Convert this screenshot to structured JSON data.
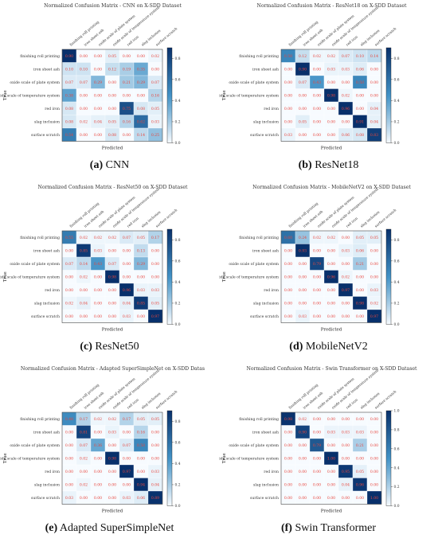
{
  "figure": {
    "colors": {
      "cell_low": "#f7fbff",
      "cell_high": "#08306b",
      "value_text": "#e8453c",
      "axis": "#222222"
    },
    "colorbar_ticks": [
      "0.0",
      "0.2",
      "0.4",
      "0.6",
      "0.8"
    ],
    "colorbar_ticks_f": [
      "0.0",
      "0.2",
      "0.4",
      "0.6",
      "0.8",
      "1.0"
    ]
  },
  "chart_data": [
    {
      "type": "heatmap",
      "caption_tag": "(a)",
      "caption_name": "CNN",
      "title": "Normalized Confusion Matrix - CNN on X-SDD Dataset",
      "xlabel": "Predicted",
      "ylabel": "True",
      "labels": [
        "finishing roll printing",
        "iron sheet ash",
        "oxide scale of plate system",
        "oxide scale of temperature system",
        "red iron",
        "slag inclusion",
        "surface scratch"
      ],
      "matrix": [
        [
          0.9,
          0.0,
          0.0,
          0.05,
          0.0,
          0.0,
          0.02
        ],
        [
          0.1,
          0.1,
          0.0,
          0.12,
          0.19,
          0.35,
          0.0
        ],
        [
          0.07,
          0.07,
          0.29,
          0.0,
          0.21,
          0.29,
          0.07
        ],
        [
          0.38,
          0.0,
          0.0,
          0.0,
          0.0,
          0.0,
          0.16
        ],
        [
          0.08,
          0.0,
          0.0,
          0.0,
          0.75,
          0.08,
          0.05
        ],
        [
          0.08,
          0.02,
          0.04,
          0.05,
          0.16,
          0.62,
          0.03
        ],
        [
          0.54,
          0.0,
          0.0,
          0.08,
          0.0,
          0.14,
          0.25
        ]
      ],
      "colorbar_range": [
        0,
        0.9
      ]
    },
    {
      "type": "heatmap",
      "caption_tag": "(b)",
      "caption_name": "ResNet18",
      "title": "Normalized Confusion Matrix - ResNet18 on X-SDD Dataset",
      "xlabel": "Predicted",
      "ylabel": "True",
      "labels": [
        "finishing roll printing",
        "iron sheet ash",
        "oxide scale of plate system",
        "oxide scale of temperature system",
        "red iron",
        "slag inclusion",
        "surface scratch"
      ],
      "matrix": [
        [
          0.5,
          0.12,
          0.02,
          0.02,
          0.07,
          0.1,
          0.14
        ],
        [
          0.0,
          0.9,
          0.0,
          0.03,
          0.03,
          0.06,
          0.0
        ],
        [
          0.0,
          0.07,
          0.43,
          0.0,
          0.0,
          0.5,
          0.0
        ],
        [
          0.0,
          0.0,
          0.0,
          0.98,
          0.02,
          0.0,
          0.0
        ],
        [
          0.0,
          0.0,
          0.0,
          0.0,
          0.96,
          0.0,
          0.04
        ],
        [
          0.0,
          0.05,
          0.0,
          0.0,
          0.0,
          0.91,
          0.04
        ],
        [
          0.03,
          0.0,
          0.0,
          0.0,
          0.06,
          0.08,
          0.83
        ]
      ],
      "colorbar_range": [
        0,
        0.9
      ]
    },
    {
      "type": "heatmap",
      "caption_tag": "(c)",
      "caption_name": "ResNet50",
      "title": "Normalized Confusion Matrix - ResNet50 on X-SDD Dataset",
      "xlabel": "Predicted",
      "ylabel": "True",
      "labels": [
        "finishing roll printing",
        "iron sheet ash",
        "oxide scale of plate system",
        "oxide scale of temperature system",
        "red iron",
        "slag inclusion",
        "surface scratch"
      ],
      "matrix": [
        [
          0.55,
          0.02,
          0.02,
          0.02,
          0.07,
          0.05,
          0.17
        ],
        [
          0.0,
          0.85,
          0.03,
          0.0,
          0.0,
          0.13,
          0.0
        ],
        [
          0.07,
          0.14,
          0.43,
          0.07,
          0.0,
          0.29,
          0.0
        ],
        [
          0.0,
          0.02,
          0.0,
          0.98,
          0.0,
          0.0,
          0.0
        ],
        [
          0.0,
          0.0,
          0.0,
          0.0,
          0.96,
          0.03,
          0.03
        ],
        [
          0.02,
          0.04,
          0.0,
          0.0,
          0.04,
          0.85,
          0.05
        ],
        [
          0.0,
          0.0,
          0.0,
          0.0,
          0.03,
          0.0,
          0.97
        ]
      ],
      "colorbar_range": [
        0,
        0.9
      ]
    },
    {
      "type": "heatmap",
      "caption_tag": "(d)",
      "caption_name": "MobileNetV2",
      "title": "Normalized Confusion Matrix - MobileNetV2 on X-SDD Dataset",
      "xlabel": "Predicted",
      "ylabel": "True",
      "labels": [
        "finishing roll printing",
        "iron sheet ash",
        "oxide scale of plate system",
        "oxide scale of temperature system",
        "red iron",
        "slag inclusion",
        "surface scratch"
      ],
      "matrix": [
        [
          0.6,
          0.24,
          0.02,
          0.02,
          0.0,
          0.05,
          0.05
        ],
        [
          0.0,
          0.93,
          0.0,
          0.0,
          0.03,
          0.06,
          0.0
        ],
        [
          0.0,
          0.0,
          0.79,
          0.0,
          0.0,
          0.21,
          0.0
        ],
        [
          0.0,
          0.0,
          0.0,
          0.96,
          0.02,
          0.0,
          0.0
        ],
        [
          0.0,
          0.0,
          0.0,
          0.0,
          0.97,
          0.0,
          0.03
        ],
        [
          0.0,
          0.0,
          0.0,
          0.0,
          0.0,
          0.98,
          0.02
        ],
        [
          0.0,
          0.03,
          0.0,
          0.0,
          0.0,
          0.0,
          0.97
        ]
      ],
      "colorbar_range": [
        0,
        0.9
      ]
    },
    {
      "type": "heatmap",
      "caption_tag": "(e)",
      "caption_name": "Adapted SuperSimpleNet",
      "title": "Normalized Confusion Matrix - Adapted SuperSimpleNet on X-SDD Datas",
      "xlabel": "Predicted",
      "ylabel": "True",
      "labels": [
        "finishing roll printing",
        "iron sheet ash",
        "oxide scale of plate system",
        "oxide scale of temperature system",
        "red iron",
        "slag inclusion",
        "surface scratch"
      ],
      "matrix": [
        [
          0.48,
          0.17,
          0.02,
          0.02,
          0.17,
          0.05,
          0.05
        ],
        [
          0.0,
          0.81,
          0.0,
          0.03,
          0.0,
          0.16,
          0.0
        ],
        [
          0.0,
          0.07,
          0.36,
          0.0,
          0.07,
          0.5,
          0.0
        ],
        [
          0.0,
          0.02,
          0.0,
          0.98,
          0.0,
          0.0,
          0.0
        ],
        [
          0.0,
          0.0,
          0.0,
          0.0,
          0.97,
          0.0,
          0.03
        ],
        [
          0.0,
          0.02,
          0.0,
          0.0,
          0.0,
          0.94,
          0.04
        ],
        [
          0.03,
          0.0,
          0.0,
          0.0,
          0.03,
          0.06,
          0.89
        ]
      ],
      "colorbar_range": [
        0,
        0.9
      ]
    },
    {
      "type": "heatmap",
      "caption_tag": "(f)",
      "caption_name": "Swin Transformer",
      "title": "Normalized Confusion Matrix - Swin Transformer on X-SDD Dataset",
      "xlabel": "Predicted",
      "ylabel": "True",
      "labels": [
        "finishing roll printing",
        "iron sheet ash",
        "oxide scale of plate system",
        "oxide scale of temperature system",
        "red iron",
        "slag inclusion",
        "surface scratch"
      ],
      "matrix": [
        [
          0.98,
          0.02,
          0.0,
          0.0,
          0.0,
          0.0,
          0.0
        ],
        [
          0.0,
          0.9,
          0.0,
          0.03,
          0.03,
          0.03,
          0.0
        ],
        [
          0.0,
          0.0,
          0.79,
          0.0,
          0.0,
          0.21,
          0.0
        ],
        [
          0.0,
          0.0,
          0.0,
          1.0,
          0.0,
          0.0,
          0.0
        ],
        [
          0.0,
          0.0,
          0.0,
          0.0,
          0.95,
          0.05,
          0.0
        ],
        [
          0.0,
          0.0,
          0.0,
          0.0,
          0.04,
          0.96,
          0.0
        ],
        [
          0.0,
          0.0,
          0.0,
          0.0,
          0.0,
          0.0,
          1.0
        ]
      ],
      "colorbar_range": [
        0,
        1.0
      ]
    }
  ]
}
